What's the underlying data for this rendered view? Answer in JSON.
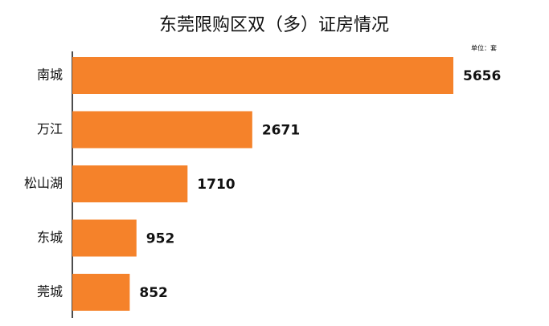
{
  "chart_data": {
    "type": "bar",
    "orientation": "horizontal",
    "title": "东莞限购区双（多）证房情况",
    "unit": "单位：套",
    "categories": [
      "南城",
      "万江",
      "松山湖",
      "东城",
      "莞城"
    ],
    "values": [
      5656,
      2671,
      1710,
      952,
      852
    ],
    "color": "#f5822a"
  }
}
